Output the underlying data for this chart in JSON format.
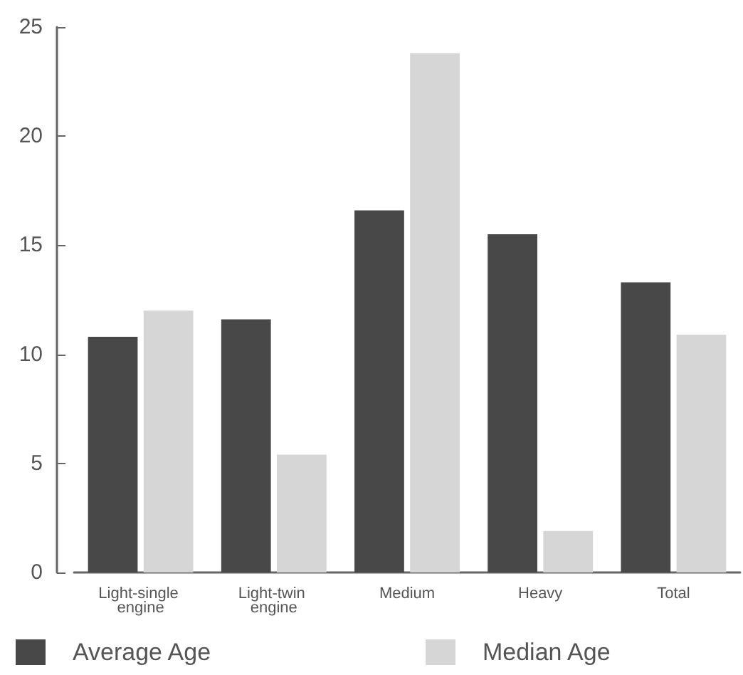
{
  "chart_data": {
    "type": "bar",
    "categories": [
      "Light-single engine",
      "Light-twin engine",
      "Medium",
      "Heavy",
      "Total"
    ],
    "series": [
      {
        "name": "Average Age",
        "color": "#484848",
        "values": [
          10.8,
          11.6,
          16.6,
          15.5,
          13.3
        ]
      },
      {
        "name": "Median Age",
        "color": "#d6d6d6",
        "values": [
          12.0,
          5.4,
          23.8,
          1.9,
          10.9
        ]
      }
    ],
    "ylim": [
      0,
      25
    ],
    "yticks": [
      0,
      5,
      10,
      15,
      20,
      25
    ],
    "grid": false,
    "legend": "bottom left"
  }
}
